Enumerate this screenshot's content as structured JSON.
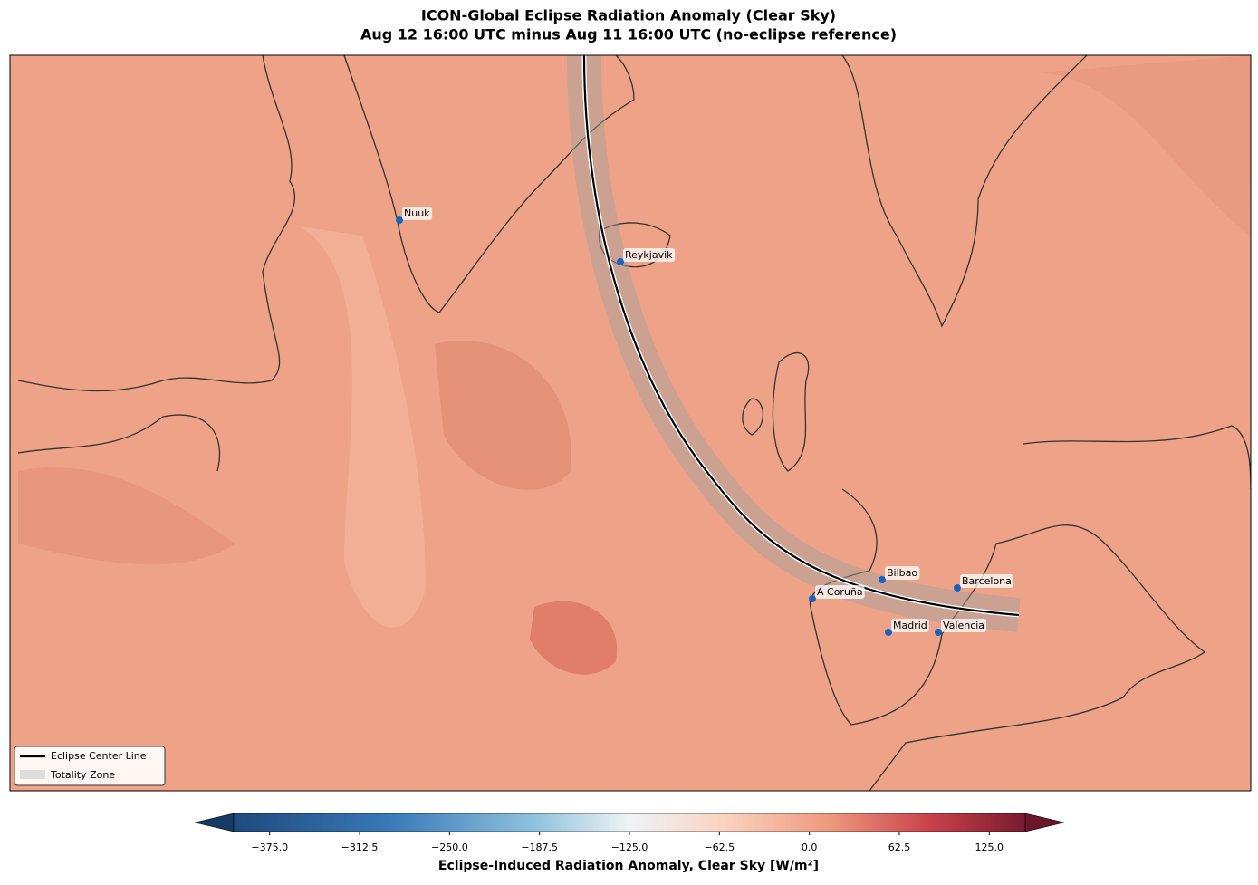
{
  "title": [
    "ICON-Global Eclipse Radiation Anomaly (Clear Sky)",
    "Aug 12 16:00 UTC minus Aug 11 16:00 UTC (no-eclipse reference)"
  ],
  "map": {
    "cities": [
      "Nuuk",
      "Reykjavik",
      "A Coruña",
      "Bilbao",
      "Barcelona",
      "Madrid",
      "Valencia"
    ],
    "legend": [
      "Eclipse Center Line",
      "Totality Zone"
    ]
  },
  "colorbar": {
    "label": "Eclipse-Induced Radiation Anomaly, Clear Sky [W/m²]",
    "lim": [
      -400,
      150
    ],
    "ticks": [
      {
        "value": -375,
        "label": "−375.0"
      },
      {
        "value": -312.5,
        "label": "−312.5"
      },
      {
        "value": -250,
        "label": "−250.0"
      },
      {
        "value": -187.5,
        "label": "−187.5"
      },
      {
        "value": -125,
        "label": "−125.0"
      },
      {
        "value": -62.5,
        "label": "−62.5"
      },
      {
        "value": 0,
        "label": "0.0"
      },
      {
        "value": 62.5,
        "label": "62.5"
      },
      {
        "value": 125,
        "label": "125.0"
      }
    ]
  }
}
